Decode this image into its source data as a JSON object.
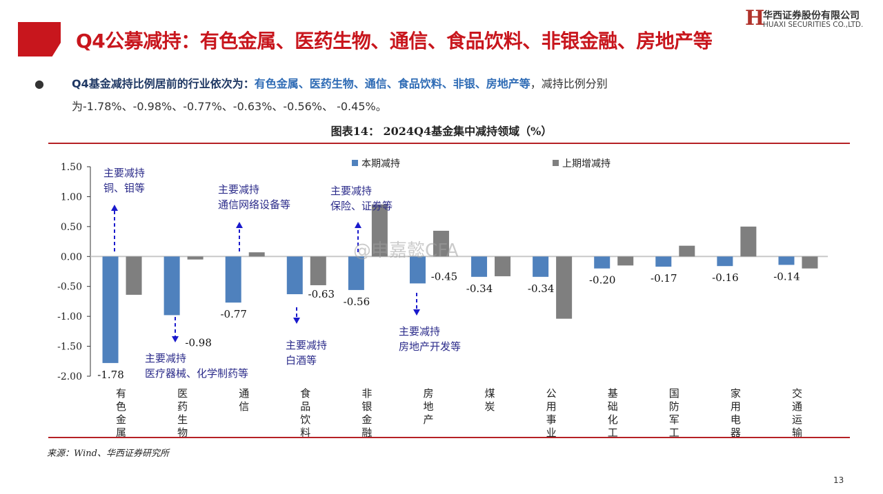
{
  "header": {
    "title": "Q4公募减持：有色金属、医药生物、通信、食品饮料、非银金融、房地产等",
    "logo_cn": "华西证券股份有限公司",
    "logo_en": "HUAXI SECURITIES CO.,LTD."
  },
  "body": {
    "lead": "Q4基金减持比例居前的行业依次为：",
    "industries": "有色金属、医药生物、通信、食品饮料、非银、房地产等",
    "tail": "，减持比例分别为-1.78%、-0.98%、-0.77%、-0.63%、-0.56%、 -0.45%。"
  },
  "figure_title": "图表14：  2024Q4基金集中减持领域（%）",
  "annotations": [
    "主要减持\n铜、钼等",
    "主要减持\n医疗器械、化学制药等",
    "主要减持\n通信网络设备等",
    "主要减持\n白酒等",
    "主要减持\n保险、证券等",
    "主要减持\n房地产开发等"
  ],
  "watermark": "@申嘉懿CFA",
  "source": "来源：Wind、华西证券研究所",
  "page_number": "13",
  "colors": {
    "current": "#4f81bd",
    "previous": "#7f7f7f",
    "accent": "#c8161d"
  },
  "chart_data": {
    "type": "bar",
    "title": "2024Q4基金集中减持领域（%）",
    "categories": [
      "有色金属",
      "医药生物",
      "通信",
      "食品饮料",
      "非银金融",
      "房地产",
      "煤炭",
      "公用事业",
      "基础化工",
      "国防军工",
      "家用电器",
      "交通运输"
    ],
    "series": [
      {
        "name": "本期减持",
        "values": [
          -1.78,
          -0.98,
          -0.77,
          -0.63,
          -0.56,
          -0.45,
          -0.34,
          -0.34,
          -0.2,
          -0.17,
          -0.16,
          -0.14
        ],
        "labels": [
          "-1.78",
          "-0.98",
          "-0.77",
          "-0.63",
          "-0.56",
          "-0.45",
          "-0.34",
          "-0.34",
          "-0.20",
          "-0.17",
          "-0.16",
          "-0.14"
        ]
      },
      {
        "name": "上期增减持",
        "values": [
          -0.64,
          -0.05,
          0.07,
          -0.48,
          0.87,
          0.43,
          -0.33,
          -1.04,
          -0.15,
          0.18,
          0.5,
          -0.2
        ]
      }
    ],
    "yticks": [
      "1.50",
      "1.00",
      "0.50",
      "0.00",
      "-0.50",
      "-1.00",
      "-1.50",
      "-2.00"
    ],
    "ylim": [
      -2.0,
      1.5
    ],
    "legend": "top",
    "grid": false
  }
}
